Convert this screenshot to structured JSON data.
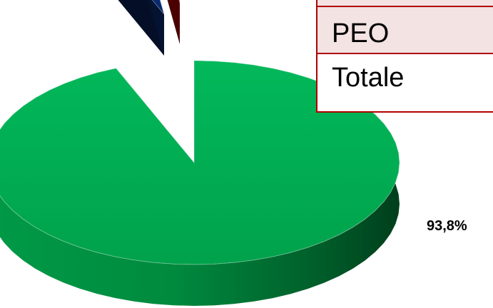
{
  "chart_data": {
    "type": "pie",
    "slices": [
      {
        "value": 93.8,
        "color": "#00a84f",
        "label": "93,8%"
      },
      {
        "value": 4.0,
        "color": "#0a2a6e",
        "label": ""
      },
      {
        "value": 2.2,
        "color": "#d40000",
        "label": ""
      }
    ],
    "exploded": true,
    "style": "3d"
  },
  "table": {
    "rows": [
      {
        "label": "PEO"
      },
      {
        "label": "Totale"
      }
    ]
  }
}
